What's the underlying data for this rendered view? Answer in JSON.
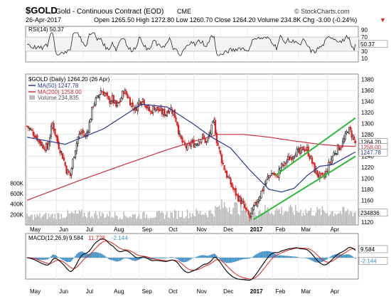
{
  "header": {
    "symbol": "$GOLD",
    "name": "Gold - Continuous Contract (EOD)",
    "exchange": "CME",
    "date": "26-Apr-2017",
    "quote": "Open 1265.50  High 1272.80  Low 1260.70  Close 1264.20  Volume 234.8K  Chg -3.00 (-0.24%)",
    "quote_arrow": "▼",
    "watermark": "© StockCharts.com"
  },
  "rsi_panel": {
    "label": "RSI(14) 50.37",
    "last_value": "50.37",
    "ticks": [
      "90",
      "70",
      "50",
      "30",
      "10"
    ]
  },
  "price_panel": {
    "label": "$GOLD (Daily) 1264.20 (26 Apr)",
    "legend": [
      {
        "label": "MA(50) 1247.78",
        "color": "#2a3590"
      },
      {
        "label": "MA(200) 1258.00",
        "color": "#cc2f40"
      },
      {
        "label": "Volume 234,835",
        "color": "#777777"
      }
    ],
    "right_ticks": [
      "1380",
      "1360",
      "1340",
      "1320",
      "1300",
      "1280",
      "1260",
      "1240",
      "1220",
      "1200",
      "1180",
      "1160",
      "1140",
      "1120"
    ],
    "left_volume_ticks": [
      "800K",
      "600K",
      "400K",
      "200K"
    ],
    "last_labels": {
      "close": "1264.20",
      "ma200": "1258.00",
      "ma50": "1247.78",
      "volume": "234836"
    }
  },
  "macd_panel": {
    "label": "MACD(12,26,9) 9.584, 11.728, -2.144",
    "label_parts": {
      "name": "MACD(12,26,9)",
      "macd": "9.584",
      "signal": "11.728",
      "hist": "-2.144"
    },
    "last_labels": {
      "macd": "9.584",
      "signal": "11.728",
      "hist": "-2.144"
    }
  },
  "x_axis": [
    "May",
    "Jun",
    "Jul",
    "Aug",
    "Sep",
    "Oct",
    "Nov",
    "Dec",
    "2017",
    "Feb",
    "Mar",
    "Apr"
  ],
  "colors": {
    "up": "#111111",
    "down": "#e02020",
    "channel": "#2dbb3a",
    "ma50": "#2a3590",
    "ma200": "#cc2f40",
    "volume": "#aaaaaa",
    "hist": "#3c8fc4"
  },
  "chart_data": {
    "type": "candlestick",
    "period": "2016-05 to 2017-04-26",
    "price_ylim": [
      1115,
      1390
    ],
    "close_anchors": [
      [
        0,
        1295
      ],
      [
        6,
        1280
      ],
      [
        12,
        1260
      ],
      [
        16,
        1255
      ],
      [
        20,
        1300
      ],
      [
        24,
        1265
      ],
      [
        28,
        1240
      ],
      [
        31,
        1215
      ],
      [
        34,
        1205
      ],
      [
        37,
        1245
      ],
      [
        40,
        1275
      ],
      [
        43,
        1285
      ],
      [
        46,
        1275
      ],
      [
        49,
        1300
      ],
      [
        52,
        1335
      ],
      [
        55,
        1345
      ],
      [
        58,
        1360
      ],
      [
        61,
        1355
      ],
      [
        64,
        1340
      ],
      [
        67,
        1345
      ],
      [
        70,
        1330
      ],
      [
        73,
        1340
      ],
      [
        76,
        1360
      ],
      [
        79,
        1350
      ],
      [
        82,
        1335
      ],
      [
        85,
        1325
      ],
      [
        88,
        1340
      ],
      [
        91,
        1345
      ],
      [
        94,
        1330
      ],
      [
        97,
        1320
      ],
      [
        100,
        1330
      ],
      [
        103,
        1325
      ],
      [
        106,
        1320
      ],
      [
        109,
        1318
      ],
      [
        112,
        1330
      ],
      [
        115,
        1320
      ],
      [
        118,
        1300
      ],
      [
        120,
        1275
      ],
      [
        123,
        1260
      ],
      [
        126,
        1255
      ],
      [
        129,
        1265
      ],
      [
        132,
        1262
      ],
      [
        135,
        1270
      ],
      [
        138,
        1275
      ],
      [
        141,
        1265
      ],
      [
        144,
        1285
      ],
      [
        147,
        1303
      ],
      [
        149,
        1270
      ],
      [
        151,
        1250
      ],
      [
        154,
        1225
      ],
      [
        157,
        1205
      ],
      [
        160,
        1190
      ],
      [
        163,
        1175
      ],
      [
        166,
        1165
      ],
      [
        169,
        1155
      ],
      [
        172,
        1140
      ],
      [
        175,
        1128
      ],
      [
        178,
        1145
      ],
      [
        181,
        1160
      ],
      [
        184,
        1175
      ],
      [
        187,
        1190
      ],
      [
        190,
        1205
      ],
      [
        193,
        1210
      ],
      [
        196,
        1200
      ],
      [
        199,
        1220
      ],
      [
        202,
        1225
      ],
      [
        205,
        1235
      ],
      [
        208,
        1240
      ],
      [
        211,
        1250
      ],
      [
        214,
        1245
      ],
      [
        217,
        1255
      ],
      [
        220,
        1252
      ],
      [
        223,
        1235
      ],
      [
        226,
        1215
      ],
      [
        229,
        1205
      ],
      [
        232,
        1200
      ],
      [
        235,
        1210
      ],
      [
        238,
        1230
      ],
      [
        241,
        1245
      ],
      [
        244,
        1255
      ],
      [
        247,
        1260
      ],
      [
        250,
        1275
      ],
      [
        252,
        1290
      ],
      [
        254,
        1285
      ],
      [
        256,
        1275
      ],
      [
        258,
        1264
      ]
    ],
    "ma50_anchors": [
      [
        0,
        1275
      ],
      [
        30,
        1262
      ],
      [
        60,
        1290
      ],
      [
        90,
        1335
      ],
      [
        110,
        1330
      ],
      [
        130,
        1300
      ],
      [
        145,
        1275
      ],
      [
        160,
        1255
      ],
      [
        175,
        1215
      ],
      [
        190,
        1180
      ],
      [
        200,
        1175
      ],
      [
        210,
        1182
      ],
      [
        220,
        1205
      ],
      [
        230,
        1222
      ],
      [
        240,
        1225
      ],
      [
        250,
        1238
      ],
      [
        258,
        1248
      ]
    ],
    "ma200_anchors": [
      [
        0,
        1160
      ],
      [
        40,
        1195
      ],
      [
        80,
        1228
      ],
      [
        110,
        1252
      ],
      [
        135,
        1270
      ],
      [
        150,
        1280
      ],
      [
        170,
        1280
      ],
      [
        190,
        1275
      ],
      [
        210,
        1268
      ],
      [
        230,
        1262
      ],
      [
        245,
        1259
      ],
      [
        258,
        1258
      ]
    ],
    "volume_anchors_k": [
      [
        0,
        150
      ],
      [
        20,
        170
      ],
      [
        40,
        200
      ],
      [
        60,
        190
      ],
      [
        80,
        170
      ],
      [
        100,
        180
      ],
      [
        120,
        200
      ],
      [
        145,
        230
      ],
      [
        155,
        360
      ],
      [
        165,
        320
      ],
      [
        175,
        280
      ],
      [
        190,
        270
      ],
      [
        210,
        260
      ],
      [
        230,
        240
      ],
      [
        258,
        235
      ]
    ],
    "channel_upper": [
      [
        195,
        1205
      ],
      [
        258,
        1310
      ]
    ],
    "channel_lower": [
      [
        178,
        1125
      ],
      [
        258,
        1240
      ]
    ],
    "month_start_bars": [
      0,
      23,
      44,
      66,
      88,
      109,
      131,
      152,
      173,
      193,
      213,
      236
    ],
    "rsi_last": 50.37,
    "macd_last": {
      "macd": 9.584,
      "signal": 11.728,
      "hist": -2.144
    }
  }
}
